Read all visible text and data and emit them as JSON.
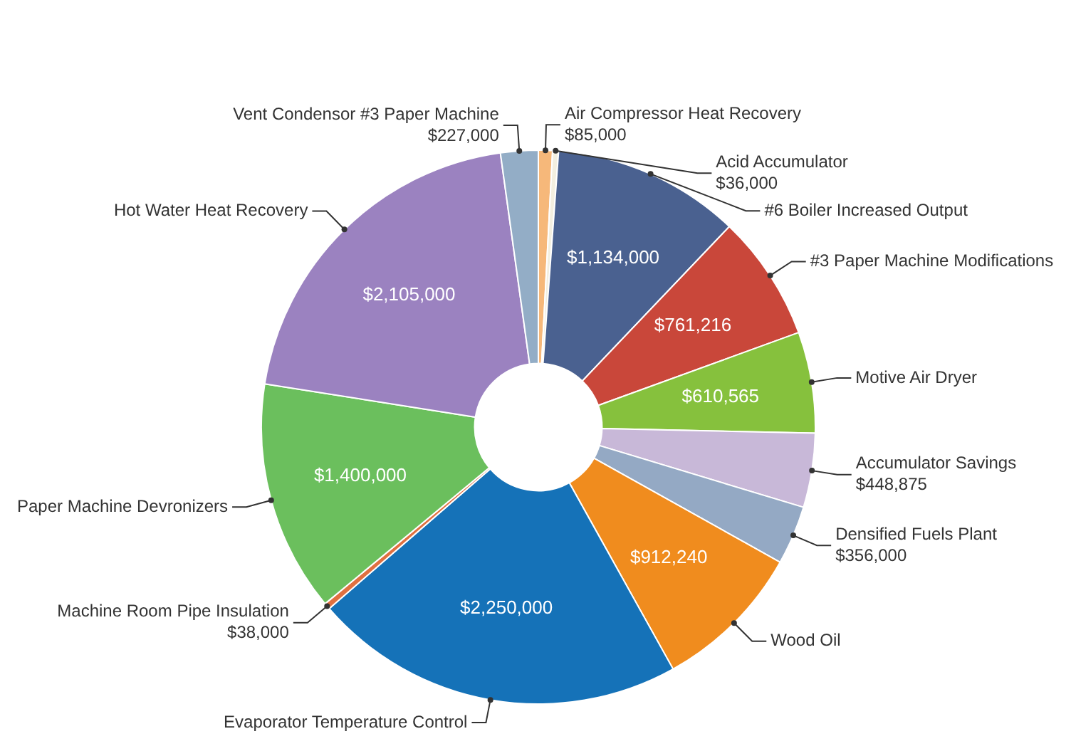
{
  "chart_data": {
    "type": "donut",
    "categories": [
      "Air Compressor Heat Recovery",
      "Acid Accumulator",
      "#6 Boiler Increased Output",
      "#3 Paper Machine Modifications",
      "Motive Air Dryer",
      "Accumulator Savings",
      "Densified Fuels Plant",
      "Wood Oil",
      "Evaporator Temperature Control",
      "Machine Room Pipe Insulation",
      "Paper Machine Devronizers",
      "Hot Water Heat Recovery",
      "Vent Condensor #3 Paper Machine"
    ],
    "values": [
      85000,
      36000,
      1134000,
      761216,
      610565,
      448875,
      356000,
      912240,
      2250000,
      38000,
      1400000,
      2105000,
      227000
    ],
    "value_labels": [
      "$85,000",
      "$36,000",
      "$1,134,000",
      "$761,216",
      "$610,565",
      "$448,875",
      "$356,000",
      "$912,240",
      "$2,250,000",
      "$38,000",
      "$1,400,000",
      "$2,105,000",
      "$227,000"
    ],
    "colors": [
      "#f6b87a",
      "#f3efe0",
      "#4a6190",
      "#c9473a",
      "#86c13d",
      "#c8b8d8",
      "#94a9c4",
      "#f08c1e",
      "#1572b8",
      "#e07040",
      "#6bbf5d",
      "#9b82c0",
      "#93adc6"
    ],
    "legend": false
  }
}
